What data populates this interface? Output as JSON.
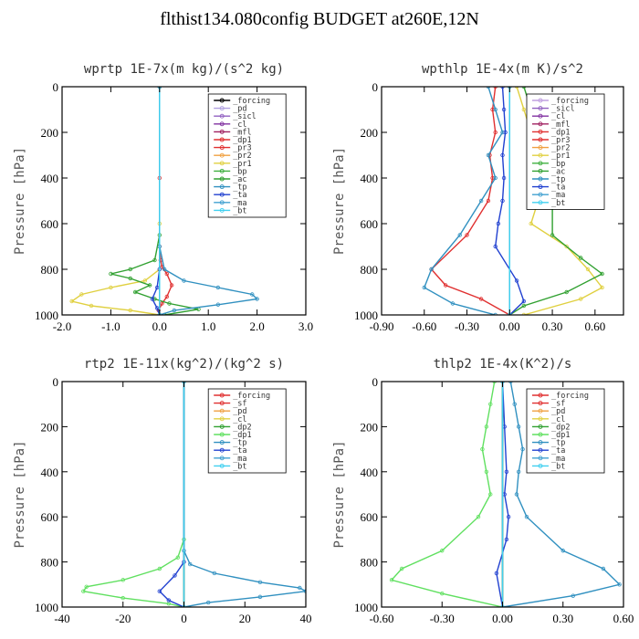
{
  "page": {
    "title": "flthist134.080config  BUDGET at260E,12N"
  },
  "chart_data": [
    {
      "type": "line",
      "title": "wprtp  1E-7x(m kg)/(s^2 kg)",
      "ylabel": "Pressure [hPa]",
      "xlim": [
        -2.0,
        3.0
      ],
      "ylim": [
        0,
        1000
      ],
      "y_inverted": true,
      "xticks": [
        "-2.0",
        "-1.0",
        "0.0",
        "1.0",
        "2.0",
        "3.0"
      ],
      "xtick_values": [
        -2,
        -1,
        0,
        1,
        2,
        3
      ],
      "yticks": [
        "0",
        "200",
        "400",
        "600",
        "800",
        "1000"
      ],
      "ytick_values": [
        0,
        200,
        400,
        600,
        800,
        1000
      ],
      "legend_position": "top-right",
      "series": [
        {
          "name": "_forcing",
          "color": "#000000",
          "x": [
            0,
            0
          ],
          "y": [
            0,
            1000
          ]
        },
        {
          "name": "_pd",
          "color": "#b0a0e0",
          "x": [
            0,
            0
          ],
          "y": [
            0,
            1000
          ]
        },
        {
          "name": "_sicl",
          "color": "#9060c0",
          "x": [
            0,
            0
          ],
          "y": [
            0,
            1000
          ]
        },
        {
          "name": "_cl",
          "color": "#8030a0",
          "x": [
            0,
            0
          ],
          "y": [
            0,
            1000
          ]
        },
        {
          "name": "_mfl",
          "color": "#a02060",
          "x": [
            0,
            0
          ],
          "y": [
            0,
            1000
          ]
        },
        {
          "name": "_dp1",
          "color": "#e03030",
          "x": [
            0,
            0,
            0,
            0.02,
            0.05,
            0.15,
            0.25,
            0.15,
            0.05,
            -0.02,
            0.0
          ],
          "y": [
            0,
            400,
            700,
            760,
            790,
            820,
            870,
            920,
            950,
            980,
            1000
          ]
        },
        {
          "name": "_pr3",
          "color": "#e03030",
          "x": [
            0,
            0
          ],
          "y": [
            0,
            1000
          ]
        },
        {
          "name": "_pr2",
          "color": "#f0a040",
          "x": [
            0,
            0
          ],
          "y": [
            0,
            1000
          ]
        },
        {
          "name": "_pr1",
          "color": "#e0d040",
          "x": [
            0,
            0,
            0,
            -0.3,
            -1.0,
            -1.6,
            -1.8,
            -1.4,
            -0.6,
            0.0
          ],
          "y": [
            0,
            600,
            800,
            850,
            880,
            910,
            940,
            960,
            980,
            1000
          ]
        },
        {
          "name": "_bp",
          "color": "#40b040",
          "x": [
            0,
            0
          ],
          "y": [
            0,
            1000
          ]
        },
        {
          "name": "_ac",
          "color": "#30a030",
          "x": [
            0,
            0,
            -0.1,
            -0.6,
            -1.0,
            -0.6,
            -0.2,
            -0.5,
            -0.1,
            0.2,
            0.8,
            0.1
          ],
          "y": [
            0,
            650,
            760,
            800,
            820,
            840,
            870,
            900,
            930,
            950,
            975,
            1000
          ]
        },
        {
          "name": "_tp",
          "color": "#3090c0",
          "x": [
            0,
            0,
            0.1,
            0.5,
            1.2,
            1.9,
            2.0,
            1.2,
            0.3,
            0.0
          ],
          "y": [
            0,
            700,
            800,
            850,
            880,
            910,
            930,
            955,
            980,
            1000
          ]
        },
        {
          "name": "_ta",
          "color": "#2040d0",
          "x": [
            0,
            0,
            -0.05,
            -0.15,
            -0.05,
            0.0
          ],
          "y": [
            0,
            800,
            880,
            930,
            970,
            1000
          ]
        },
        {
          "name": "_ma",
          "color": "#40a0d0",
          "x": [
            0,
            0
          ],
          "y": [
            0,
            1000
          ]
        },
        {
          "name": "_bt",
          "color": "#40d0f0",
          "x": [
            0,
            0
          ],
          "y": [
            0,
            1000
          ]
        }
      ]
    },
    {
      "type": "line",
      "title": "wpthlp  1E-4x(m K)/s^2",
      "ylabel": "Pressure [hPa]",
      "xlim": [
        -0.9,
        0.8
      ],
      "ylim": [
        0,
        1000
      ],
      "y_inverted": true,
      "xticks": [
        "-0.90",
        "-0.60",
        "-0.30",
        "0.00",
        "0.30",
        "0.60"
      ],
      "xtick_values": [
        -0.9,
        -0.6,
        -0.3,
        0.0,
        0.3,
        0.6
      ],
      "yticks": [
        "0",
        "200",
        "400",
        "600",
        "800",
        "1000"
      ],
      "ytick_values": [
        0,
        200,
        400,
        600,
        800,
        1000
      ],
      "legend_position": "top-right",
      "series": [
        {
          "name": "_forcing",
          "color": "#c0a0e0",
          "x": [
            0,
            0
          ],
          "y": [
            0,
            1000
          ]
        },
        {
          "name": "_sicl",
          "color": "#9060c0",
          "x": [
            0,
            0
          ],
          "y": [
            0,
            1000
          ]
        },
        {
          "name": "_cl",
          "color": "#8030a0",
          "x": [
            0,
            0
          ],
          "y": [
            0,
            1000
          ]
        },
        {
          "name": "_mfl",
          "color": "#a02060",
          "x": [
            0,
            0
          ],
          "y": [
            0,
            1000
          ]
        },
        {
          "name": "_dp1",
          "color": "#e03030",
          "x": [
            -0.1,
            -0.12,
            -0.1,
            -0.14,
            -0.12,
            -0.15,
            -0.3,
            -0.55,
            -0.45,
            -0.2,
            0.0
          ],
          "y": [
            0,
            100,
            200,
            300,
            400,
            500,
            650,
            800,
            870,
            930,
            1000
          ]
        },
        {
          "name": "_pr3",
          "color": "#e03030",
          "x": [
            0,
            0
          ],
          "y": [
            0,
            1000
          ]
        },
        {
          "name": "_pr2",
          "color": "#f0a040",
          "x": [
            0,
            0
          ],
          "y": [
            0,
            1000
          ]
        },
        {
          "name": "_pr1",
          "color": "#e0d040",
          "x": [
            0.05,
            0.1,
            0.15,
            0.2,
            0.25,
            0.2,
            0.15,
            0.4,
            0.55,
            0.65,
            0.5,
            0.1
          ],
          "y": [
            0,
            100,
            200,
            300,
            400,
            500,
            600,
            700,
            800,
            880,
            930,
            1000
          ]
        },
        {
          "name": "_bp",
          "color": "#40b040",
          "x": [
            0,
            0
          ],
          "y": [
            0,
            1000
          ]
        },
        {
          "name": "_ac",
          "color": "#30a030",
          "x": [
            0.1,
            0.15,
            0.2,
            0.25,
            0.3,
            0.3,
            0.3,
            0.5,
            0.65,
            0.4,
            0.1,
            0.0
          ],
          "y": [
            0,
            100,
            200,
            300,
            400,
            500,
            650,
            750,
            820,
            900,
            960,
            1000
          ]
        },
        {
          "name": "_tp",
          "color": "#3090c0",
          "x": [
            -0.15,
            -0.1,
            -0.05,
            -0.15,
            -0.1,
            -0.2,
            -0.35,
            -0.55,
            -0.6,
            -0.4,
            -0.1
          ],
          "y": [
            0,
            100,
            200,
            300,
            400,
            500,
            650,
            800,
            880,
            950,
            1000
          ]
        },
        {
          "name": "_ta",
          "color": "#2040d0",
          "x": [
            -0.05,
            -0.04,
            -0.03,
            -0.05,
            -0.04,
            -0.05,
            -0.08,
            -0.1,
            0.05,
            0.1,
            0.0
          ],
          "y": [
            0,
            100,
            200,
            300,
            400,
            500,
            600,
            700,
            850,
            940,
            1000
          ]
        },
        {
          "name": "_ma",
          "color": "#40a0d0",
          "x": [
            0,
            0
          ],
          "y": [
            0,
            1000
          ]
        },
        {
          "name": "_bt",
          "color": "#40d0f0",
          "x": [
            0,
            0
          ],
          "y": [
            0,
            1000
          ]
        }
      ]
    },
    {
      "type": "line",
      "title": "rtp2  1E-11x(kg^2)/(kg^2 s)",
      "ylabel": "Pressure [hPa]",
      "xlim": [
        -40,
        40
      ],
      "ylim": [
        0,
        1000
      ],
      "y_inverted": true,
      "xticks": [
        "-40",
        "-20",
        "0",
        "20",
        "40"
      ],
      "xtick_values": [
        -40,
        -20,
        0,
        20,
        40
      ],
      "yticks": [
        "0",
        "200",
        "400",
        "600",
        "800",
        "1000"
      ],
      "ytick_values": [
        0,
        200,
        400,
        600,
        800,
        1000
      ],
      "legend_position": "top-right",
      "series": [
        {
          "name": "_forcing",
          "color": "#e03030",
          "x": [
            0,
            0
          ],
          "y": [
            0,
            1000
          ]
        },
        {
          "name": "_sf",
          "color": "#e03030",
          "x": [
            0,
            0
          ],
          "y": [
            0,
            1000
          ]
        },
        {
          "name": "_pd",
          "color": "#f0a040",
          "x": [
            0,
            0
          ],
          "y": [
            0,
            1000
          ]
        },
        {
          "name": "_cl",
          "color": "#e0d040",
          "x": [
            0,
            0
          ],
          "y": [
            0,
            1000
          ]
        },
        {
          "name": "_dp2",
          "color": "#30a030",
          "x": [
            0,
            0
          ],
          "y": [
            0,
            1000
          ]
        },
        {
          "name": "_dp1",
          "color": "#60e060",
          "x": [
            0,
            0,
            -2,
            -8,
            -20,
            -32,
            -33,
            -20,
            -5,
            0
          ],
          "y": [
            0,
            700,
            780,
            830,
            880,
            910,
            930,
            960,
            985,
            1000
          ]
        },
        {
          "name": "_tp",
          "color": "#3090c0",
          "x": [
            0,
            0,
            2,
            10,
            25,
            38,
            40,
            25,
            8,
            0
          ],
          "y": [
            0,
            750,
            810,
            850,
            890,
            915,
            930,
            955,
            980,
            1000
          ]
        },
        {
          "name": "_ta",
          "color": "#2040d0",
          "x": [
            0,
            0,
            -3,
            -8,
            -5,
            0
          ],
          "y": [
            0,
            800,
            860,
            930,
            970,
            1000
          ]
        },
        {
          "name": "_ma",
          "color": "#40a0d0",
          "x": [
            0,
            0
          ],
          "y": [
            0,
            1000
          ]
        },
        {
          "name": "_bt",
          "color": "#40d0f0",
          "x": [
            0,
            0
          ],
          "y": [
            0,
            1000
          ]
        }
      ]
    },
    {
      "type": "line",
      "title": "thlp2  1E-4x(K^2)/s",
      "ylabel": "Pressure [hPa]",
      "xlim": [
        -0.6,
        0.6
      ],
      "ylim": [
        0,
        1000
      ],
      "y_inverted": true,
      "xticks": [
        "-0.60",
        "-0.30",
        "0.00",
        "0.30",
        "0.60"
      ],
      "xtick_values": [
        -0.6,
        -0.3,
        0.0,
        0.3,
        0.6
      ],
      "yticks": [
        "0",
        "200",
        "400",
        "600",
        "800",
        "1000"
      ],
      "ytick_values": [
        0,
        200,
        400,
        600,
        800,
        1000
      ],
      "legend_position": "top-right",
      "series": [
        {
          "name": "_forcing",
          "color": "#e03030",
          "x": [
            0,
            0
          ],
          "y": [
            0,
            1000
          ]
        },
        {
          "name": "_sf",
          "color": "#e03030",
          "x": [
            0,
            0
          ],
          "y": [
            0,
            1000
          ]
        },
        {
          "name": "_pd",
          "color": "#f0a040",
          "x": [
            0,
            0
          ],
          "y": [
            0,
            1000
          ]
        },
        {
          "name": "_cl",
          "color": "#e0d040",
          "x": [
            0,
            0
          ],
          "y": [
            0,
            1000
          ]
        },
        {
          "name": "_dp2",
          "color": "#30a030",
          "x": [
            0,
            0
          ],
          "y": [
            0,
            1000
          ]
        },
        {
          "name": "_dp1",
          "color": "#60e060",
          "x": [
            -0.04,
            -0.06,
            -0.08,
            -0.1,
            -0.08,
            -0.06,
            -0.12,
            -0.3,
            -0.5,
            -0.55,
            -0.3,
            0.0
          ],
          "y": [
            0,
            100,
            200,
            300,
            400,
            500,
            600,
            750,
            830,
            880,
            940,
            1000
          ]
        },
        {
          "name": "_tp",
          "color": "#3090c0",
          "x": [
            0.04,
            0.06,
            0.08,
            0.1,
            0.08,
            0.07,
            0.12,
            0.3,
            0.5,
            0.58,
            0.35,
            0.0
          ],
          "y": [
            0,
            100,
            200,
            300,
            400,
            500,
            600,
            750,
            830,
            900,
            950,
            1000
          ]
        },
        {
          "name": "_ta",
          "color": "#2040d0",
          "x": [
            0,
            0.01,
            0.02,
            0.01,
            0.03,
            0.02,
            -0.03,
            0.0
          ],
          "y": [
            0,
            200,
            400,
            500,
            600,
            700,
            850,
            1000
          ]
        },
        {
          "name": "_ma",
          "color": "#40a0d0",
          "x": [
            0,
            0
          ],
          "y": [
            0,
            1000
          ]
        },
        {
          "name": "_bt",
          "color": "#40d0f0",
          "x": [
            0,
            0
          ],
          "y": [
            0,
            1000
          ]
        }
      ]
    }
  ]
}
